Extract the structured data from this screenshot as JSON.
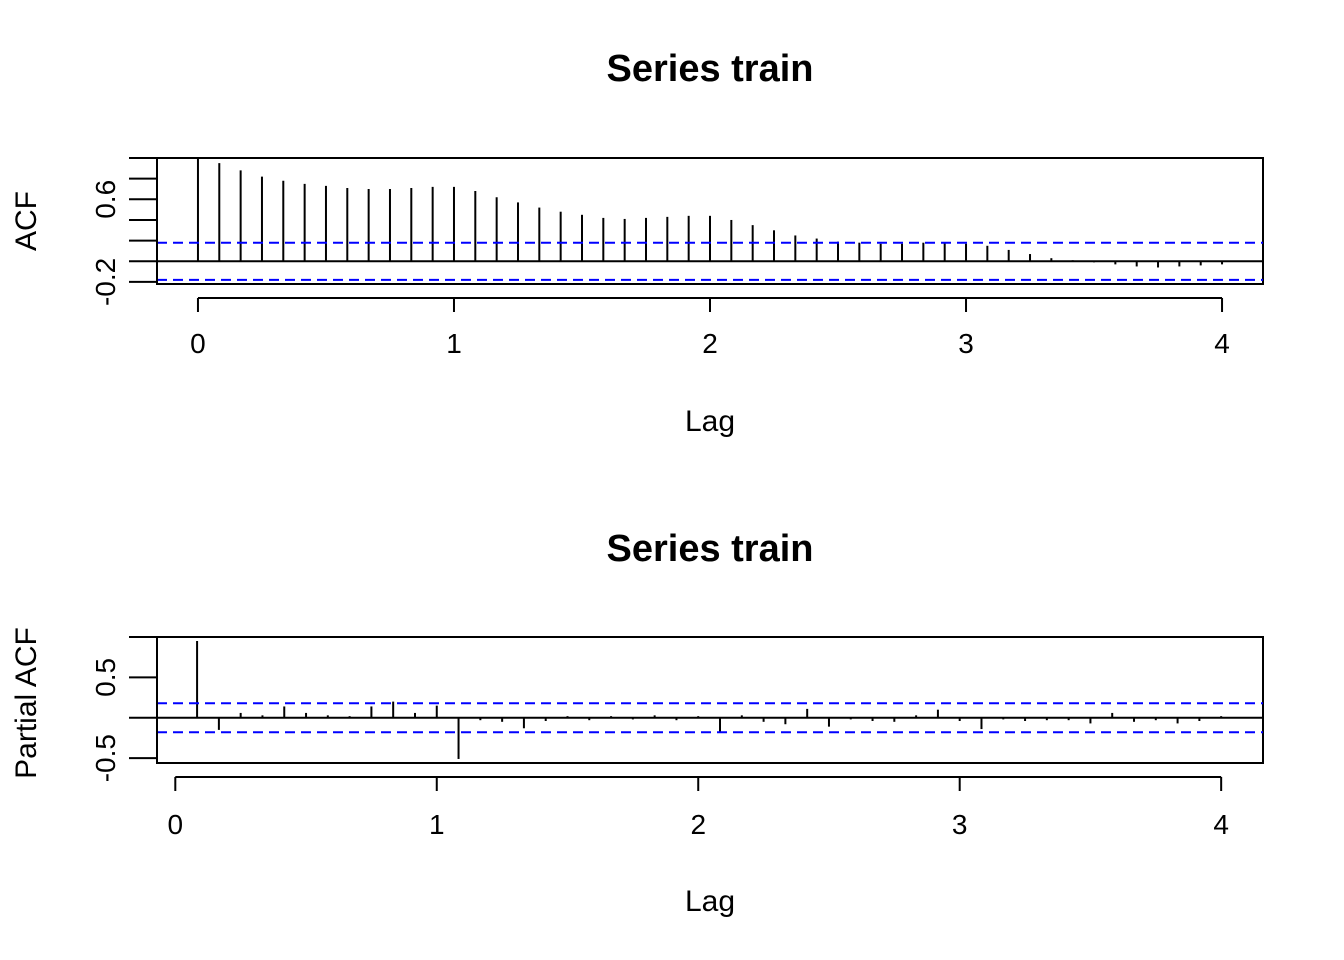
{
  "chart_data": [
    {
      "type": "bar",
      "title": "Series  train",
      "xlabel": "Lag",
      "ylabel": "ACF",
      "xlim": [
        -0.16,
        4.16
      ],
      "ylim": [
        -0.22,
        1.0
      ],
      "x_ticks": [
        0,
        1,
        2,
        3,
        4
      ],
      "x_tick_labels": [
        "0",
        "1",
        "2",
        "3",
        "4"
      ],
      "y_ticks": [
        -0.2,
        0.6
      ],
      "y_tick_labels": [
        "-0.2",
        "0.6"
      ],
      "y_minor_ticks": [
        -0.2,
        0.0,
        0.2,
        0.4,
        0.6,
        0.8,
        1.0
      ],
      "conf_limits": [
        0.18,
        -0.18
      ],
      "lags": [
        0,
        0.0833,
        0.1667,
        0.25,
        0.3333,
        0.4167,
        0.5,
        0.5833,
        0.6667,
        0.75,
        0.8333,
        0.9167,
        1.0,
        1.0833,
        1.1667,
        1.25,
        1.3333,
        1.4167,
        1.5,
        1.5833,
        1.6667,
        1.75,
        1.8333,
        1.9167,
        2.0,
        2.0833,
        2.1667,
        2.25,
        2.3333,
        2.4167,
        2.5,
        2.5833,
        2.6667,
        2.75,
        2.8333,
        2.9167,
        3.0,
        3.0833,
        3.1667,
        3.25,
        3.3333,
        3.4167,
        3.5,
        3.5833,
        3.6667,
        3.75,
        3.8333,
        3.9167,
        4.0
      ],
      "values": [
        1.0,
        0.95,
        0.88,
        0.82,
        0.78,
        0.75,
        0.73,
        0.71,
        0.7,
        0.7,
        0.71,
        0.72,
        0.72,
        0.68,
        0.62,
        0.57,
        0.52,
        0.48,
        0.45,
        0.42,
        0.41,
        0.42,
        0.43,
        0.44,
        0.44,
        0.4,
        0.35,
        0.3,
        0.25,
        0.22,
        0.19,
        0.18,
        0.17,
        0.17,
        0.18,
        0.18,
        0.17,
        0.15,
        0.11,
        0.07,
        0.03,
        0.01,
        -0.01,
        -0.03,
        -0.05,
        -0.06,
        -0.05,
        -0.04,
        -0.03
      ],
      "line_color": "#000000",
      "conf_color": "#0000ff"
    },
    {
      "type": "bar",
      "title": "Series  train",
      "xlabel": "Lag",
      "ylabel": "Partial ACF",
      "xlim": [
        -0.07,
        4.16
      ],
      "ylim": [
        -0.56,
        1.0
      ],
      "x_ticks": [
        0,
        1,
        2,
        3,
        4
      ],
      "x_tick_labels": [
        "0",
        "1",
        "2",
        "3",
        "4"
      ],
      "y_ticks": [
        -0.5,
        0.5
      ],
      "y_tick_labels": [
        "-0.5",
        "0.5"
      ],
      "y_minor_ticks": [
        -0.5,
        0.0,
        0.5,
        1.0
      ],
      "conf_limits": [
        0.18,
        -0.18
      ],
      "lags": [
        0.0833,
        0.1667,
        0.25,
        0.3333,
        0.4167,
        0.5,
        0.5833,
        0.6667,
        0.75,
        0.8333,
        0.9167,
        1.0,
        1.0833,
        1.1667,
        1.25,
        1.3333,
        1.4167,
        1.5,
        1.5833,
        1.6667,
        1.75,
        1.8333,
        1.9167,
        2.0,
        2.0833,
        2.1667,
        2.25,
        2.3333,
        2.4167,
        2.5,
        2.5833,
        2.6667,
        2.75,
        2.8333,
        2.9167,
        3.0,
        3.0833,
        3.1667,
        3.25,
        3.3333,
        3.4167,
        3.5,
        3.5833,
        3.6667,
        3.75,
        3.8333,
        3.9167,
        4.0
      ],
      "values": [
        0.95,
        -0.15,
        0.06,
        0.03,
        0.14,
        0.06,
        0.03,
        0.02,
        0.14,
        0.2,
        0.06,
        0.15,
        -0.51,
        -0.03,
        -0.05,
        -0.13,
        -0.04,
        0.02,
        -0.03,
        0.02,
        -0.02,
        0.03,
        -0.03,
        0.02,
        -0.17,
        0.03,
        -0.05,
        -0.08,
        0.11,
        -0.11,
        -0.02,
        -0.04,
        -0.05,
        0.03,
        0.1,
        -0.04,
        -0.14,
        -0.02,
        -0.04,
        -0.03,
        -0.03,
        -0.07,
        0.06,
        -0.05,
        -0.03,
        -0.07,
        -0.04,
        0.02
      ],
      "line_color": "#000000",
      "conf_color": "#0000ff"
    }
  ]
}
